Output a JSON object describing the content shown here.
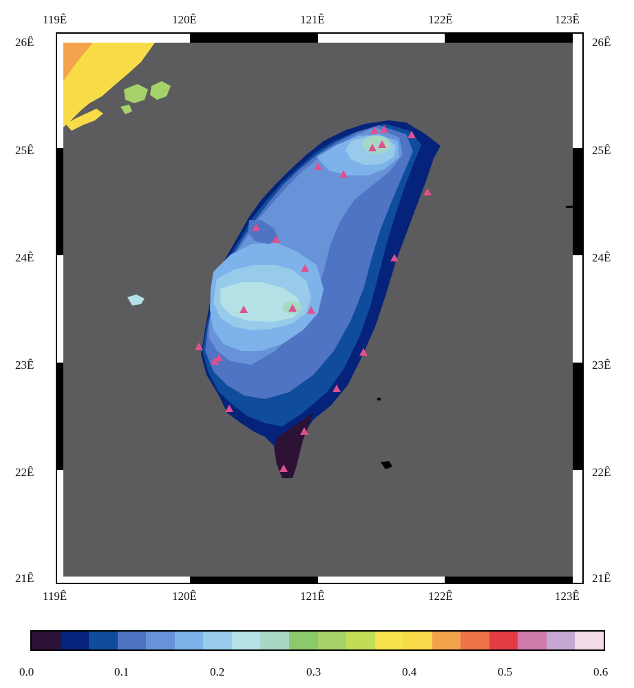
{
  "map": {
    "frame_colors": {
      "land_ocean": "#5c5c5e",
      "border": "#000000",
      "background": "#ffffff"
    },
    "top_axis_labels": [
      "119Ê",
      "120Ê",
      "121Ê",
      "122Ê",
      "123Ê"
    ],
    "bottom_axis_labels": [
      "119Ê",
      "120Ê",
      "121Ê",
      "122Ê",
      "123Ê"
    ],
    "left_axis_labels": [
      "26Ê",
      "25Ê",
      "24Ê",
      "23Ê",
      "22Ê",
      "21Ê"
    ],
    "right_axis_labels": [
      "26Ê",
      "25Ê",
      "24Ê",
      "23Ê",
      "22Ê",
      "21Ê"
    ],
    "station_marker_color": "#e0508e",
    "station_count": 24
  },
  "colorbar": {
    "tick_labels": [
      "0.0",
      "0.1",
      "0.2",
      "0.3",
      "0.4",
      "0.5",
      "0.6"
    ],
    "colors": [
      "#2d1235",
      "#05237a",
      "#104c9c",
      "#4f74c4",
      "#6893d8",
      "#7db3ea",
      "#98cbea",
      "#b3e1e6",
      "#a6d8c4",
      "#8cc96c",
      "#a6d26a",
      "#c2dc58",
      "#f7e44c",
      "#f7d94a",
      "#f3a34b",
      "#ee7349",
      "#e33b44",
      "#d07aaa",
      "#c7a8d2",
      "#f3dbe8"
    ]
  }
}
